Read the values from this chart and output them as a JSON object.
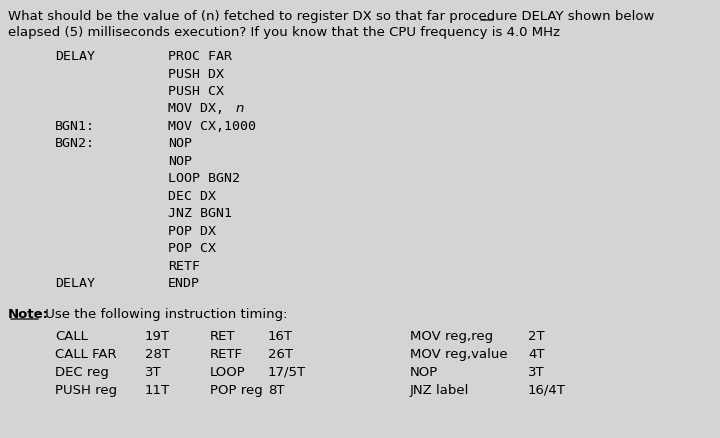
{
  "bg_color": "#d4d4d4",
  "title_line1": "What should be the value of (n) fetched to register DX so that far procedure DELAY shown below",
  "title_line2": "elapsed (5) milliseconds execution? If you know that the CPU frequency is 4.0 MHz",
  "code_block": [
    {
      "label": "DELAY",
      "instruction": "PROC FAR"
    },
    {
      "label": "",
      "instruction": "PUSH DX"
    },
    {
      "label": "",
      "instruction": "PUSH CX"
    },
    {
      "label": "",
      "instruction": "MOV DX, n"
    },
    {
      "label": "BGN1:",
      "instruction": "MOV CX,1000"
    },
    {
      "label": "BGN2:",
      "instruction": "NOP"
    },
    {
      "label": "",
      "instruction": "NOP"
    },
    {
      "label": "",
      "instruction": "LOOP BGN2"
    },
    {
      "label": "",
      "instruction": "DEC DX"
    },
    {
      "label": "",
      "instruction": "JNZ BGN1"
    },
    {
      "label": "",
      "instruction": "POP DX"
    },
    {
      "label": "",
      "instruction": "POP CX"
    },
    {
      "label": "",
      "instruction": "RETF"
    },
    {
      "label": "DELAY",
      "instruction": "ENDP"
    }
  ],
  "note_text": "Note:",
  "note_rest": " Use the following instruction timing:",
  "timing_col1": [
    [
      "CALL",
      "19T"
    ],
    [
      "CALL FAR",
      "28T"
    ],
    [
      "DEC reg",
      "3T"
    ],
    [
      "PUSH reg",
      "11T"
    ]
  ],
  "timing_col2": [
    [
      "RET",
      "16T"
    ],
    [
      "RETF",
      "26T"
    ],
    [
      "LOOP",
      "17/5T"
    ],
    [
      "POP reg",
      "8T"
    ]
  ],
  "timing_col3": [
    [
      "MOV reg,reg",
      "2T"
    ],
    [
      "MOV reg,value",
      "4T"
    ],
    [
      "NOP",
      "3T"
    ],
    [
      "JNZ label",
      "16/4T"
    ]
  ],
  "font_family": "DejaVu Sans",
  "mono_font": "DejaVu Sans Mono"
}
